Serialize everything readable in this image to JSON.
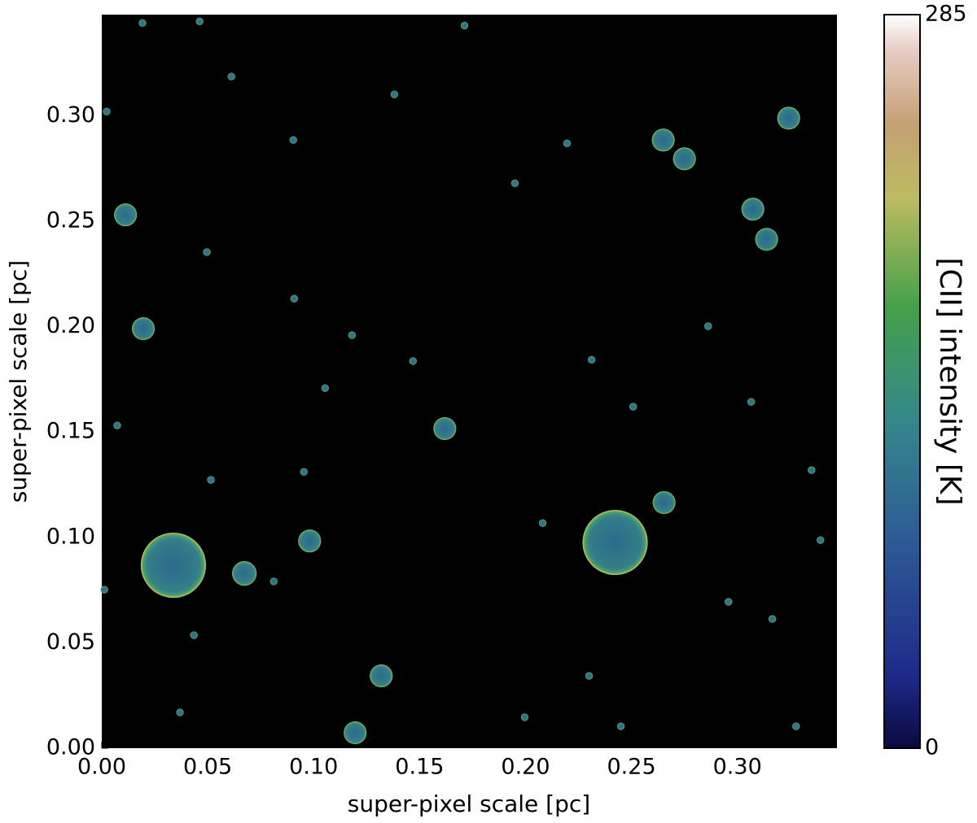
{
  "chart_data": {
    "type": "bubble",
    "x_label": "super-pixel scale [pc]",
    "y_label": "super-pixel scale [pc]",
    "xlim": [
      0,
      0.347
    ],
    "ylim": [
      0,
      0.348
    ],
    "xticks": [
      {
        "value": 0,
        "label": "0.00"
      },
      {
        "value": 0.05,
        "label": "0.05"
      },
      {
        "value": 0.1,
        "label": "0.10"
      },
      {
        "value": 0.15,
        "label": "0.15"
      },
      {
        "value": 0.2,
        "label": "0.20"
      },
      {
        "value": 0.25,
        "label": "0.25"
      },
      {
        "value": 0.3,
        "label": "0.30"
      }
    ],
    "yticks": [
      {
        "value": 0,
        "label": "0.00"
      },
      {
        "value": 0.05,
        "label": "0.05"
      },
      {
        "value": 0.1,
        "label": "0.10"
      },
      {
        "value": 0.15,
        "label": "0.15"
      },
      {
        "value": 0.2,
        "label": "0.20"
      },
      {
        "value": 0.25,
        "label": "0.25"
      },
      {
        "value": 0.3,
        "label": "0.30"
      }
    ],
    "x": [
      0.0338,
      0.2423,
      0.0673,
      0.0981,
      0.1319,
      0.1196,
      0.1619,
      0.2654,
      0.0196,
      0.0112,
      0.265,
      0.275,
      0.3073,
      0.3138,
      0.3242,
      0.0192,
      0.0462,
      0.1712,
      0.0023,
      0.0612,
      0.0904,
      0.1381,
      0.195,
      0.0496,
      0.0908,
      0.1181,
      0.1469,
      0.2312,
      0.2862,
      0.3065,
      0.335,
      0.3392,
      0.2958,
      0.3165,
      0.245,
      0.1996,
      0.0369,
      0.0435,
      0.0812,
      0.0012,
      0.0073,
      0.0515,
      0.0954,
      0.1054,
      0.2081,
      0.23,
      0.3277,
      0.2508,
      0.2196
    ],
    "y": [
      0.0868,
      0.0976,
      0.0829,
      0.0983,
      0.0343,
      0.0073,
      0.1516,
      0.1165,
      0.199,
      0.253,
      0.2885,
      0.2796,
      0.2557,
      0.2414,
      0.2989,
      0.344,
      0.3448,
      0.3428,
      0.302,
      0.3186,
      0.2885,
      0.3101,
      0.268,
      0.2353,
      0.2133,
      0.1959,
      0.1836,
      0.1843,
      0.2002,
      0.1643,
      0.1319,
      0.0987,
      0.0694,
      0.0613,
      0.0104,
      0.0147,
      0.017,
      0.0536,
      0.0791,
      0.0752,
      0.1531,
      0.1273,
      0.1311,
      0.1708,
      0.1068,
      0.0343,
      0.0104,
      0.162,
      0.2869
    ],
    "sizes": [
      0.0154,
      0.0154,
      0.0058,
      0.0054,
      0.0054,
      0.0054,
      0.0054,
      0.0054,
      0.0054,
      0.0054,
      0.0054,
      0.0054,
      0.0054,
      0.0054,
      0.0054,
      0.0018,
      0.0018,
      0.0018,
      0.0018,
      0.0018,
      0.0018,
      0.0018,
      0.0018,
      0.0018,
      0.0018,
      0.0018,
      0.0018,
      0.0018,
      0.0018,
      0.0018,
      0.0018,
      0.0018,
      0.0018,
      0.0018,
      0.0018,
      0.0018,
      0.0018,
      0.0018,
      0.0018,
      0.0018,
      0.0018,
      0.0018,
      0.0018,
      0.0018,
      0.0018,
      0.0018,
      0.0018,
      0.0018,
      0.0018
    ],
    "colorbar": {
      "label": "[CII] intensity [K]",
      "clim": [
        0,
        285
      ],
      "ticks": [
        0,
        285
      ]
    }
  }
}
